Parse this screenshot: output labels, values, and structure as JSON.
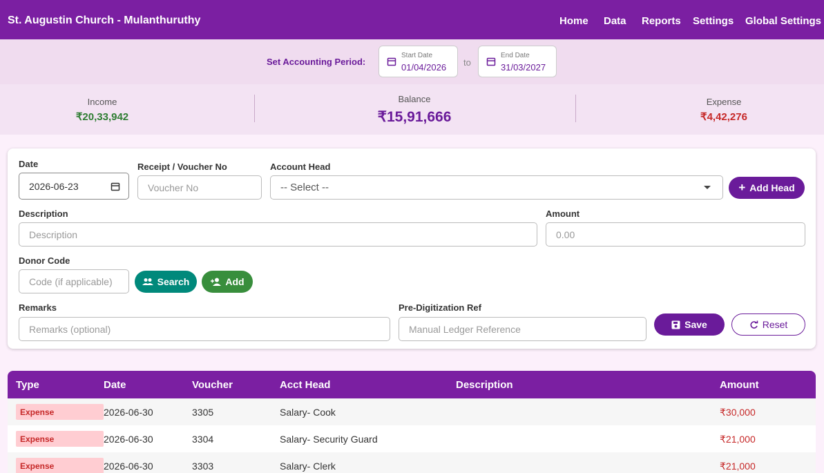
{
  "header": {
    "title": "St. Augustin Church - Mulanthuruthy",
    "nav": [
      "Home",
      "Data",
      "Reports",
      "Settings",
      "Global Settings"
    ]
  },
  "period": {
    "label": "Set Accounting Period:",
    "start_label": "Start Date",
    "start": "01/04/2026",
    "to": "to",
    "end_label": "End Date",
    "end": "31/03/2027"
  },
  "summary": {
    "income_label": "Income",
    "income": "₹20,33,942",
    "balance_label": "Balance",
    "balance": "₹15,91,666",
    "expense_label": "Expense",
    "expense": "₹4,42,276"
  },
  "form": {
    "date_label": "Date",
    "date": "2026-06-23",
    "voucher_label": "Receipt / Voucher No",
    "voucher_placeholder": "Voucher No",
    "head_label": "Account Head",
    "head_select": "-- Select --",
    "add_head": "Add Head",
    "description_label": "Description",
    "description_placeholder": "Description",
    "amount_label": "Amount",
    "amount_placeholder": "0.00",
    "donor_label": "Donor Code",
    "donor_placeholder": "Code (if applicable)",
    "search": "Search",
    "add": "Add",
    "remarks_label": "Remarks",
    "remarks_placeholder": "Remarks (optional)",
    "ref_label": "Pre-Digitization Ref",
    "ref_placeholder": "Manual Ledger Reference",
    "save": "Save",
    "reset": "Reset"
  },
  "table": {
    "columns": [
      "Type",
      "Date",
      "Voucher",
      "Acct Head",
      "Description",
      "Amount"
    ],
    "rows": [
      [
        "Expense",
        "2026-06-30",
        "3305",
        "Salary- Cook",
        "",
        "₹30,000"
      ],
      [
        "Expense",
        "2026-06-30",
        "3304",
        "Salary- Security Guard",
        "",
        "₹21,000"
      ],
      [
        "Expense",
        "2026-06-30",
        "3303",
        "Salary- Clerk",
        "",
        "₹21,000"
      ]
    ]
  }
}
